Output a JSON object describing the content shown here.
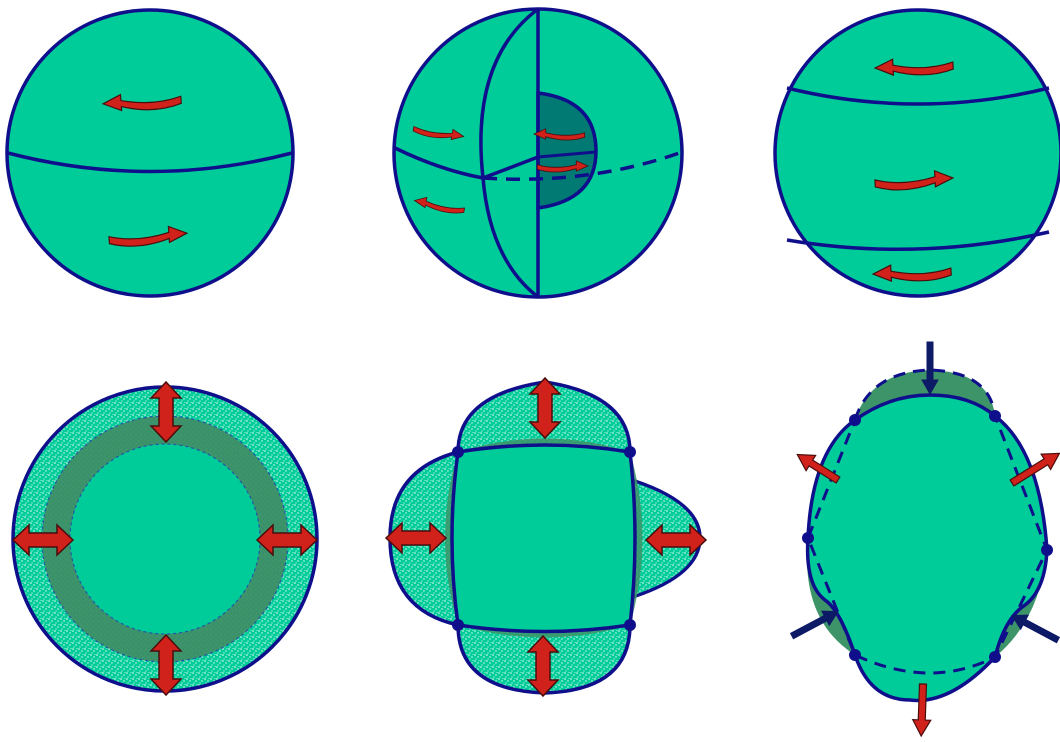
{
  "colors": {
    "fill": "#00cc99",
    "fill_dark": "#3c9468",
    "fill_darker": "#007a73",
    "stroke": "#0f0f8c",
    "arrow_red": "#d0211b",
    "arrow_blue": "#0d1a66",
    "speckle": "#e8fff6",
    "background": "#ffffff"
  },
  "panels": [
    {
      "id": "sphere-torsional-equator",
      "kind": "sphere",
      "description_icon": "two-hemisphere-rotation"
    },
    {
      "id": "sphere-torsional-cutaway",
      "kind": "sphere",
      "description_icon": "core-mantle-cutaway"
    },
    {
      "id": "sphere-torsional-bands",
      "kind": "sphere",
      "description_icon": "three-band-rotation"
    },
    {
      "id": "radial-breathing-mode",
      "kind": "cross-section",
      "description_icon": "radial-expansion"
    },
    {
      "id": "football-mode",
      "kind": "cross-section",
      "description_icon": "quadrupole-deformation"
    },
    {
      "id": "higher-order-spheroidal-mode",
      "kind": "cross-section",
      "description_icon": "octupole-deformation"
    }
  ]
}
